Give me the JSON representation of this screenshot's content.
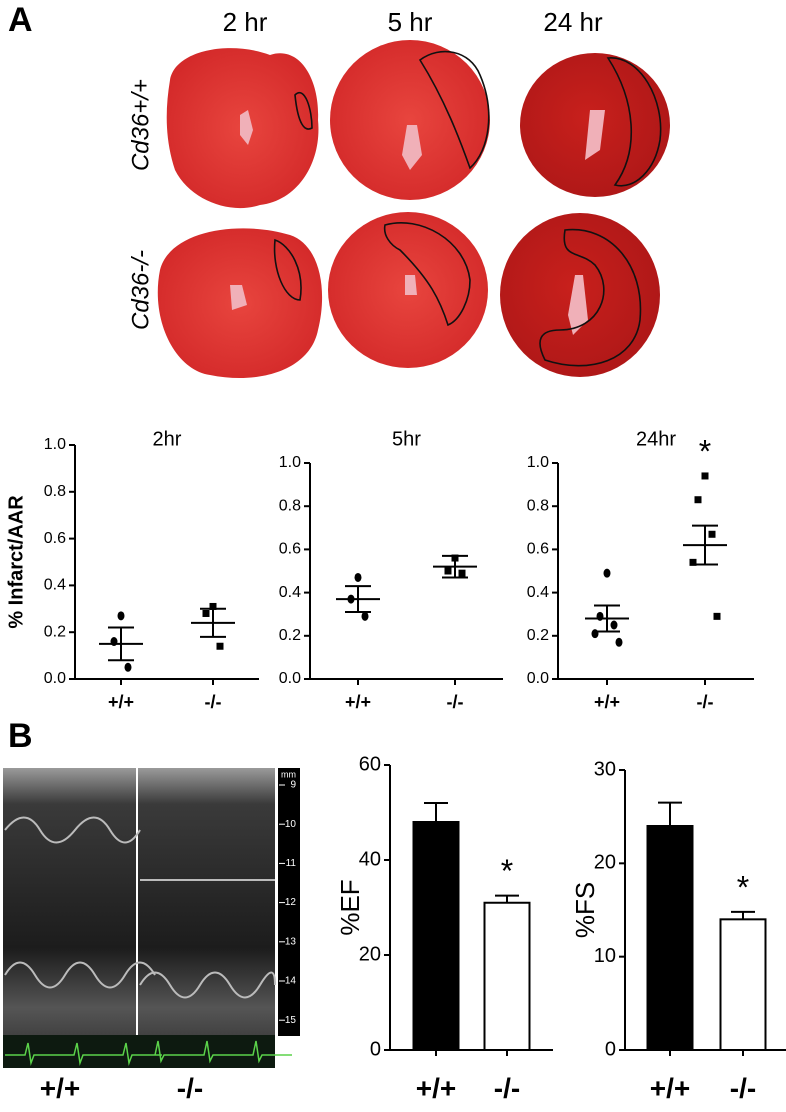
{
  "panel_labels": [
    "A",
    "B"
  ],
  "time_labels": [
    "2 hr",
    "5 hr",
    "24 hr"
  ],
  "row_labels": [
    "Cd36+/+",
    "Cd36-/-"
  ],
  "echo": {
    "labels": [
      "+/+",
      "-/-"
    ],
    "scale_unit": "mm",
    "scale_ticks": [
      9,
      10,
      11,
      12,
      13,
      14,
      15
    ]
  },
  "chart_data": [
    {
      "type": "dot",
      "title": "2hr",
      "ylabel": "% Infarct/AAR",
      "categories": [
        "+/+",
        "-/-"
      ],
      "markers": [
        "circle",
        "square"
      ],
      "points": [
        [
          0.27,
          0.16,
          0.05
        ],
        [
          0.31,
          0.28,
          0.14
        ]
      ],
      "mean": [
        0.15,
        0.24
      ],
      "sem": [
        0.07,
        0.06
      ],
      "ylim": [
        0,
        1
      ],
      "yticks": [
        {
          "value": 0,
          "label": "0.0"
        },
        0.2,
        0.4,
        0.6,
        0.8,
        {
          "value": 1,
          "label": "1.0"
        }
      ]
    },
    {
      "type": "dot",
      "title": "5hr",
      "categories": [
        "+/+",
        "-/-"
      ],
      "markers": [
        "circle",
        "square"
      ],
      "points": [
        [
          0.47,
          0.37,
          0.29
        ],
        [
          0.56,
          0.5,
          0.49
        ]
      ],
      "mean": [
        0.37,
        0.52
      ],
      "sem": [
        0.06,
        0.05
      ],
      "ylim": [
        0,
        1
      ],
      "yticks": [
        {
          "value": 0,
          "label": "0.0"
        },
        0.2,
        0.4,
        0.6,
        0.8,
        {
          "value": 1,
          "label": "1.0"
        }
      ]
    },
    {
      "type": "dot",
      "title": "24hr",
      "categories": [
        "+/+",
        "-/-"
      ],
      "markers": [
        "circle",
        "square"
      ],
      "points": [
        [
          0.49,
          0.29,
          0.25,
          0.21,
          0.17
        ],
        [
          0.94,
          0.83,
          0.67,
          0.54,
          0.29
        ]
      ],
      "mean": [
        0.28,
        0.62
      ],
      "sem": [
        0.06,
        0.09
      ],
      "annotation": {
        "text": "*",
        "category": "-/-"
      },
      "ylim": [
        0,
        1
      ],
      "yticks": [
        {
          "value": 0,
          "label": "0.0"
        },
        0.2,
        0.4,
        0.6,
        0.8,
        {
          "value": 1,
          "label": "1.0"
        }
      ]
    },
    {
      "type": "bar",
      "ylabel": "%EF",
      "categories": [
        "+/+",
        "-/-"
      ],
      "values": [
        48,
        31
      ],
      "errors": [
        4,
        1.5
      ],
      "colors": [
        "#000000",
        "#ffffff"
      ],
      "annotation": {
        "text": "*",
        "category": "-/-"
      },
      "ylim": [
        0,
        60
      ],
      "yticks": [
        0,
        20,
        40,
        60
      ]
    },
    {
      "type": "bar",
      "ylabel": "%FS",
      "categories": [
        "+/+",
        "-/-"
      ],
      "values": [
        24,
        14
      ],
      "errors": [
        2.5,
        0.8
      ],
      "colors": [
        "#000000",
        "#ffffff"
      ],
      "annotation": {
        "text": "*",
        "category": "-/-"
      },
      "ylim": [
        0,
        30
      ],
      "yticks": [
        0,
        10,
        20,
        30
      ]
    }
  ]
}
